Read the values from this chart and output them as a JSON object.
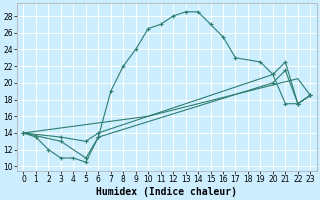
{
  "xlabel": "Humidex (Indice chaleur)",
  "background_color": "#cceeff",
  "grid_color": "#ffffff",
  "line_color": "#2e7d6e",
  "xlim": [
    -0.5,
    23.5
  ],
  "ylim": [
    9.5,
    29.5
  ],
  "xticks": [
    0,
    1,
    2,
    3,
    4,
    5,
    6,
    7,
    8,
    9,
    10,
    11,
    12,
    13,
    14,
    15,
    16,
    17,
    18,
    19,
    20,
    21,
    22,
    23
  ],
  "yticks": [
    10,
    12,
    14,
    16,
    18,
    20,
    22,
    24,
    26,
    28
  ],
  "curve1_x": [
    0,
    1,
    2,
    3,
    4,
    5,
    6,
    7,
    8,
    9,
    10,
    11,
    12,
    13,
    14,
    15,
    16,
    17,
    19,
    20,
    21,
    22,
    23
  ],
  "curve1_y": [
    14,
    13.5,
    12,
    11,
    11,
    10.5,
    13.5,
    19.0,
    22,
    24,
    26.5,
    27,
    28,
    28.5,
    28.5,
    27.0,
    25.5,
    23,
    22.5,
    21,
    17.5,
    17.5,
    18.5
  ],
  "curve2_x": [
    0,
    3,
    5,
    6,
    20,
    21,
    22,
    23
  ],
  "curve2_y": [
    14,
    13.5,
    13,
    14,
    21.0,
    22.5,
    17.5,
    18.5
  ],
  "curve3_x": [
    0,
    3,
    5,
    6,
    20,
    21,
    22,
    23
  ],
  "curve3_y": [
    14,
    13.0,
    11,
    13.5,
    20.0,
    21.5,
    17.5,
    18.5
  ],
  "line1_x": [
    0,
    10,
    22,
    23
  ],
  "line1_y": [
    14,
    16.0,
    20.5,
    18.5
  ],
  "fontsize_label": 7,
  "fontsize_tick": 5.5
}
